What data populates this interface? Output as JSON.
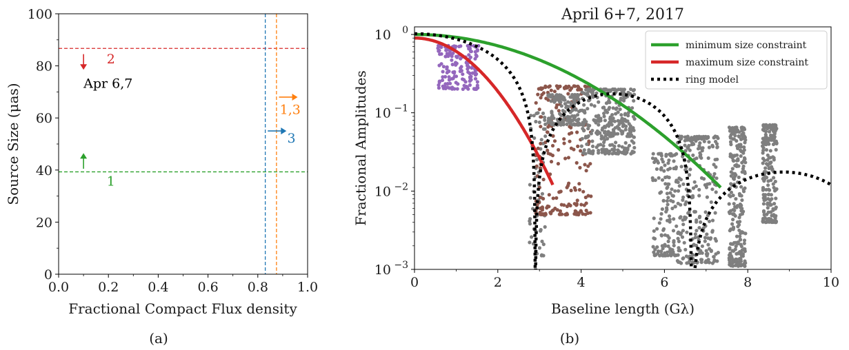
{
  "colors": {
    "green": "#2ca02c",
    "red": "#d62728",
    "blue": "#1f77b4",
    "orange": "#ff7f0e",
    "purple": "#9467bd",
    "brown": "#8c564b",
    "gray": "#7f7f7f",
    "black": "#000000"
  },
  "chart_data": [
    {
      "id": "a",
      "type": "line",
      "caption": "(a)",
      "xlabel": "Fractional Compact Flux density",
      "ylabel": "Source Size (μas)",
      "xlim": [
        0.0,
        1.0
      ],
      "ylim": [
        0,
        100
      ],
      "xticks": [
        "0.0",
        "0.2",
        "0.4",
        "0.6",
        "0.8",
        "1.0"
      ],
      "yticks": [
        "0",
        "20",
        "40",
        "60",
        "80",
        "100"
      ],
      "horizontal_lines": [
        {
          "y": 86.7,
          "color": "red",
          "label": "2"
        },
        {
          "y": 39.3,
          "color": "green",
          "label": "1"
        }
      ],
      "vertical_lines": [
        {
          "x": 0.83,
          "color": "blue"
        },
        {
          "x": 0.875,
          "color": "orange"
        }
      ],
      "arrows": [
        {
          "x": 0.1,
          "y_from": 84.5,
          "y_to": 78.5,
          "color": "red",
          "dir": "down"
        },
        {
          "x": 0.1,
          "y_from": 40.5,
          "y_to": 46.5,
          "color": "green",
          "dir": "up"
        },
        {
          "y": 55,
          "x_from": 0.84,
          "x_to": 0.915,
          "color": "blue",
          "dir": "right"
        },
        {
          "y": 68,
          "x_from": 0.885,
          "x_to": 0.96,
          "color": "orange",
          "dir": "right"
        }
      ],
      "annotations": [
        {
          "text": "2",
          "x": 0.21,
          "y": 81,
          "color": "red"
        },
        {
          "text": "1",
          "x": 0.21,
          "y": 34,
          "color": "green"
        },
        {
          "text": "Apr 6,7",
          "x": 0.1,
          "y": 71.5,
          "color": "black"
        },
        {
          "text": "1,3",
          "x": 0.93,
          "y": 61.5,
          "color": "orange"
        },
        {
          "text": "3",
          "x": 0.935,
          "y": 50.5,
          "color": "blue"
        }
      ]
    },
    {
      "id": "b",
      "type": "scatter",
      "title": "April 6+7, 2017",
      "caption": "(b)",
      "xlabel": "Baseline length (Gλ)",
      "ylabel": "Fractional Amplitudes",
      "xlim": [
        0,
        10
      ],
      "ylim": [
        0.001,
        1.25
      ],
      "yscale": "log",
      "xticks": [
        "0",
        "2",
        "4",
        "6",
        "8",
        "10"
      ],
      "yticks": [
        "10^0",
        "10^-1",
        "10^-2",
        "10^-3"
      ],
      "legend": {
        "placement": "top-right",
        "entries": [
          {
            "label": "minimum size constraint",
            "color": "green",
            "style": "solid"
          },
          {
            "label": "maximum size constraint",
            "color": "red",
            "style": "solid"
          },
          {
            "label": "ring model",
            "color": "black",
            "style": "dotted"
          }
        ]
      },
      "curves": [
        {
          "name": "minimum size constraint",
          "color": "green",
          "model": "gaussian",
          "amp": 1.0,
          "sigma": 2.45,
          "x_range": [
            0,
            7.35
          ]
        },
        {
          "name": "maximum size constraint",
          "color": "red",
          "model": "gaussian",
          "amp": 0.9,
          "sigma": 1.13,
          "x_range": [
            0,
            3.32
          ]
        },
        {
          "name": "ring model",
          "color": "black",
          "model": "ring",
          "zeros": [
            2.9,
            6.65
          ]
        }
      ],
      "scatter_groups": [
        {
          "color": "purple",
          "x_range": [
            0.55,
            1.55
          ],
          "y_min": 0.2,
          "y_max": 0.72,
          "n": 160
        },
        {
          "color": "gray",
          "x_range": [
            2.75,
            3.15
          ],
          "y_min": 0.0015,
          "y_max": 0.1,
          "n": 60
        },
        {
          "color": "brown",
          "x_range": [
            2.9,
            4.25
          ],
          "y_min": 0.005,
          "y_max": 0.22,
          "n": 220
        },
        {
          "color": "gray",
          "x_range": [
            3.2,
            4.0
          ],
          "y_min": 0.07,
          "y_max": 0.17,
          "n": 140
        },
        {
          "color": "gray",
          "x_range": [
            4.0,
            5.3
          ],
          "y_min": 0.03,
          "y_max": 0.2,
          "n": 260
        },
        {
          "color": "gray",
          "x_range": [
            4.3,
            5.2
          ],
          "y_min": 0.05,
          "y_max": 0.08,
          "n": 60
        },
        {
          "color": "gray",
          "x_range": [
            5.7,
            6.3
          ],
          "y_min": 0.0015,
          "y_max": 0.03,
          "n": 140
        },
        {
          "color": "gray",
          "x_range": [
            6.3,
            7.3
          ],
          "y_min": 0.0012,
          "y_max": 0.05,
          "n": 260
        },
        {
          "color": "gray",
          "x_range": [
            7.55,
            7.95
          ],
          "y_min": 0.0011,
          "y_max": 0.065,
          "n": 240
        },
        {
          "color": "gray",
          "x_range": [
            8.35,
            8.7
          ],
          "y_min": 0.004,
          "y_max": 0.07,
          "n": 200
        }
      ]
    }
  ]
}
